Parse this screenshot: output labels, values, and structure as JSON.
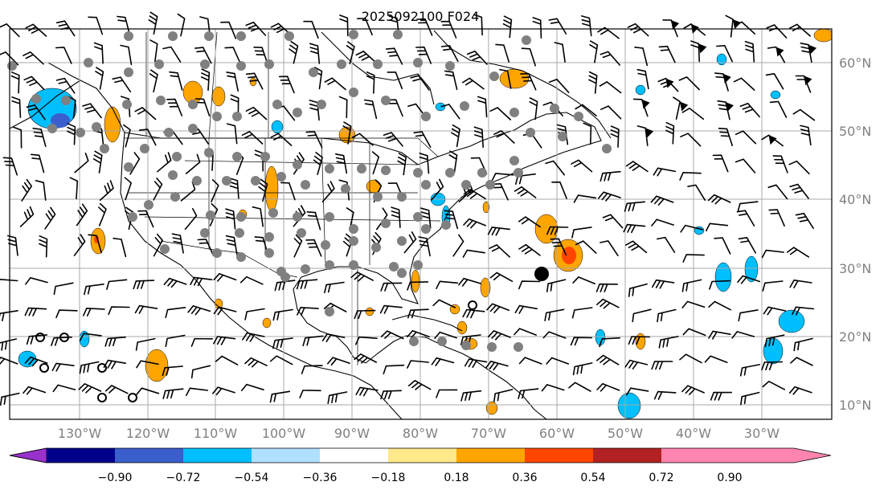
{
  "title": "2025092100 F024",
  "map": {
    "longitude_labels": [
      "130°W",
      "120°W",
      "110°W",
      "100°W",
      "90°W",
      "80°W",
      "70°W",
      "60°W",
      "50°W",
      "40°W",
      "30°W"
    ],
    "latitude_labels": [
      "60°N",
      "50°N",
      "40°N",
      "30°N",
      "20°N",
      "10°N"
    ],
    "gridlines": true,
    "features": [
      "coastlines",
      "country-borders",
      "state-provinces"
    ],
    "overlays": [
      "contour-fill",
      "wind-barbs",
      "gray-station-dots",
      "open-circle-markers",
      "black-dot-marker"
    ]
  },
  "colorbar": {
    "tick_labels": [
      "−0.90",
      "−0.72",
      "−0.54",
      "−0.36",
      "−0.18",
      "0.18",
      "0.36",
      "0.54",
      "0.72",
      "0.90"
    ],
    "colors": [
      "#9932cc",
      "#00008b",
      "#3a5fcd",
      "#00bfff",
      "#b0e0ff",
      "#ffffff",
      "#ffe98a",
      "#ffa500",
      "#ff4500",
      "#b22222",
      "#ff85b0"
    ],
    "extend": "both"
  }
}
